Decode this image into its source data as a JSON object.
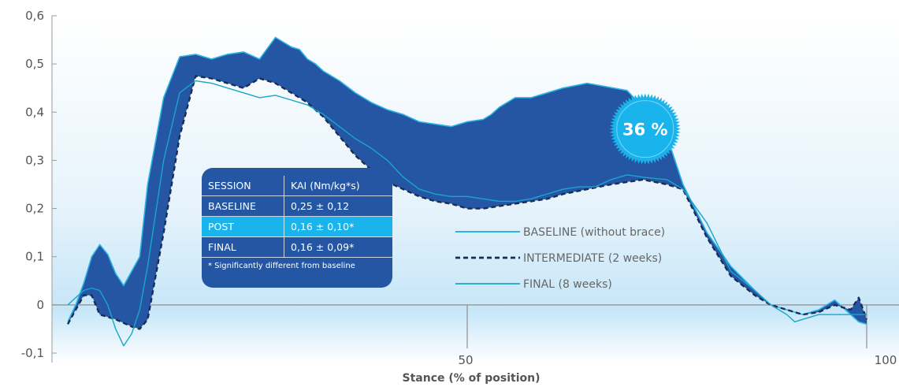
{
  "chart_data": {
    "type": "area",
    "xlabel": "Stance (% of position)",
    "ylabel": "",
    "xlim": [
      0,
      100
    ],
    "ylim": [
      -0.1,
      0.6
    ],
    "x_ticks": [
      "50",
      "100"
    ],
    "y_ticks": [
      "0,6",
      "0,5",
      "0,4",
      "0,3",
      "0,2",
      "0,1",
      "0",
      "-0,1"
    ],
    "grid": false,
    "legend_position": "right",
    "series": [
      {
        "name": "BASELINE (without brace)",
        "color": "#2bb3e6",
        "x": [
          0,
          1,
          2,
          3,
          4,
          5,
          6,
          7,
          9,
          10,
          12,
          14,
          16,
          18,
          20,
          22,
          24,
          26,
          28,
          29,
          30,
          31,
          32,
          34,
          36,
          38,
          40,
          42,
          44,
          46,
          48,
          50,
          52,
          53,
          54,
          56,
          58,
          60,
          62,
          65,
          70,
          72,
          75,
          77,
          80,
          83,
          86,
          88,
          90,
          92,
          94,
          96,
          98,
          99,
          100
        ],
        "values": [
          -0.035,
          0.0,
          0.045,
          0.1,
          0.125,
          0.105,
          0.065,
          0.04,
          0.1,
          0.25,
          0.43,
          0.515,
          0.52,
          0.51,
          0.52,
          0.525,
          0.51,
          0.555,
          0.535,
          0.53,
          0.51,
          0.5,
          0.485,
          0.465,
          0.44,
          0.42,
          0.405,
          0.395,
          0.38,
          0.375,
          0.37,
          0.38,
          0.385,
          0.395,
          0.41,
          0.43,
          0.43,
          0.44,
          0.45,
          0.46,
          0.445,
          0.41,
          0.35,
          0.25,
          0.15,
          0.08,
          0.03,
          0.0,
          -0.01,
          -0.02,
          -0.01,
          0.01,
          -0.02,
          -0.035,
          -0.04
        ]
      },
      {
        "name": "INTERMEDIATE (2 weeks)",
        "color": "#1b2d55",
        "x": [
          0,
          1,
          2,
          3,
          4,
          6,
          8,
          9,
          10,
          12,
          14,
          16,
          18,
          20,
          22,
          24,
          26,
          28,
          30,
          32,
          34,
          36,
          38,
          40,
          42,
          44,
          46,
          48,
          50,
          52,
          54,
          56,
          58,
          60,
          62,
          65,
          68,
          70,
          72,
          75,
          77,
          80,
          83,
          86,
          88,
          90,
          92,
          94,
          96,
          98,
          99,
          100
        ],
        "values": [
          -0.04,
          -0.01,
          0.02,
          0.02,
          -0.02,
          -0.03,
          -0.045,
          -0.05,
          -0.03,
          0.15,
          0.35,
          0.475,
          0.47,
          0.46,
          0.45,
          0.47,
          0.46,
          0.44,
          0.42,
          0.39,
          0.35,
          0.31,
          0.28,
          0.255,
          0.24,
          0.225,
          0.215,
          0.21,
          0.2,
          0.2,
          0.205,
          0.21,
          0.215,
          0.22,
          0.23,
          0.24,
          0.25,
          0.255,
          0.26,
          0.25,
          0.24,
          0.14,
          0.06,
          0.02,
          0.0,
          -0.01,
          -0.02,
          -0.015,
          0.0,
          -0.01,
          0.015,
          -0.03
        ]
      },
      {
        "name": "FINAL (8 weeks)",
        "color": "#1aa6c8",
        "x": [
          0,
          1,
          2,
          3,
          4,
          5,
          6,
          7,
          8,
          9,
          10,
          12,
          14,
          16,
          18,
          20,
          22,
          24,
          26,
          28,
          30,
          32,
          34,
          36,
          38,
          40,
          42,
          44,
          46,
          48,
          50,
          52,
          54,
          56,
          58,
          60,
          62,
          64,
          66,
          68,
          70,
          72,
          75,
          77,
          80,
          83,
          86,
          88,
          90,
          91,
          92,
          94,
          96,
          98,
          100
        ],
        "values": [
          0.0,
          0.015,
          0.03,
          0.035,
          0.03,
          0.0,
          -0.05,
          -0.085,
          -0.06,
          -0.01,
          0.08,
          0.3,
          0.44,
          0.465,
          0.46,
          0.45,
          0.44,
          0.43,
          0.435,
          0.425,
          0.415,
          0.395,
          0.37,
          0.345,
          0.325,
          0.3,
          0.265,
          0.24,
          0.23,
          0.225,
          0.225,
          0.22,
          0.215,
          0.215,
          0.22,
          0.23,
          0.24,
          0.245,
          0.245,
          0.26,
          0.27,
          0.265,
          0.26,
          0.24,
          0.17,
          0.07,
          0.03,
          0.0,
          -0.02,
          -0.035,
          -0.03,
          -0.02,
          -0.02,
          -0.02,
          -0.02
        ]
      }
    ],
    "band": {
      "between": [
        "BASELINE (without brace)",
        "INTERMEDIATE (2 weeks)"
      ],
      "color": "#2456a4"
    },
    "annotations": [
      {
        "text": "36 %",
        "x": 70,
        "y": 0.37,
        "color": "#1ab4ec"
      }
    ]
  },
  "table": {
    "header": [
      "SESSION",
      "KAI (Nm/kg*s)"
    ],
    "rows": [
      [
        "BASELINE",
        "0,25 ± 0,12"
      ],
      [
        "POST",
        "0,16 ± 0,10*"
      ],
      [
        "FINAL",
        "0,16 ± 0,09*"
      ]
    ],
    "highlight_row": 1,
    "footnote": "* Significantly different from baseline"
  }
}
